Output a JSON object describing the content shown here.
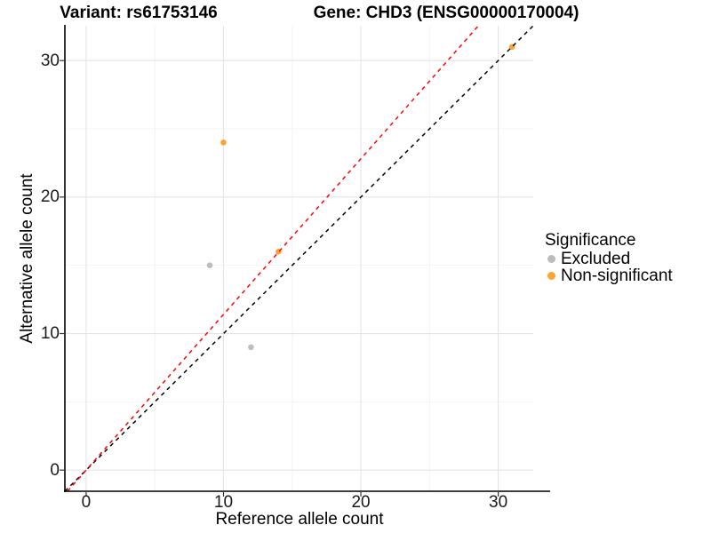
{
  "chart_data": {
    "type": "scatter",
    "titles": {
      "left": "Variant: rs61753146",
      "right": "Gene: CHD3 (ENSG00000170004)"
    },
    "xlabel": "Reference allele count",
    "ylabel": "Alternative allele count",
    "xlim": [
      -1.55,
      32.55
    ],
    "ylim": [
      -1.55,
      32.55
    ],
    "xticks": [
      0,
      10,
      20,
      30
    ],
    "yticks": [
      0,
      10,
      20,
      30
    ],
    "minor_ticks": [
      5,
      15,
      25
    ],
    "grid": true,
    "background": "#ffffff",
    "grid_color_major": "#e4e4e4",
    "grid_color_minor": "#f2f2f2",
    "legend": {
      "title": "Significance",
      "position": "right",
      "entries": [
        {
          "label": "Excluded",
          "color": "#bdbdbd"
        },
        {
          "label": "Non-significant",
          "color": "#fca42d"
        }
      ]
    },
    "series": [
      {
        "name": "Excluded",
        "color": "#bdbdbd",
        "points": [
          [
            9,
            15
          ],
          [
            12,
            9
          ]
        ]
      },
      {
        "name": "Non-significant",
        "color": "#fca42d",
        "points": [
          [
            10,
            24
          ],
          [
            14,
            16
          ],
          [
            31,
            31
          ]
        ]
      }
    ],
    "lines": [
      {
        "name": "identity",
        "slope": 1,
        "intercept": 0,
        "color": "#000000",
        "style": "dashed"
      },
      {
        "name": "expected-ratio",
        "slope": 1.14,
        "intercept": 0,
        "color": "#ff0000",
        "style": "dashed"
      }
    ]
  }
}
